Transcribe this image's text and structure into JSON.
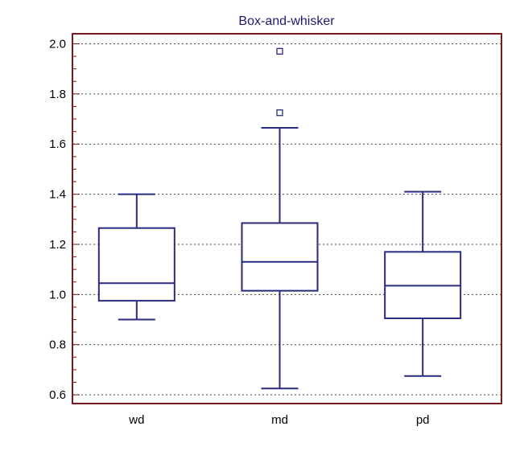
{
  "chart_data": {
    "type": "box",
    "title": "Box-and-whisker",
    "xlabel": "",
    "ylabel": "",
    "ylim": [
      0.565,
      2.04
    ],
    "y_ticks": [
      "0.6",
      "0.8",
      "1.0",
      "1.2",
      "1.4",
      "1.6",
      "1.8",
      "2.0"
    ],
    "grid": "horizontal dotted",
    "categories": [
      "wd",
      "md",
      "pd"
    ],
    "boxes": [
      {
        "category": "wd",
        "whisker_low": 0.9,
        "q1": 0.975,
        "median": 1.045,
        "q3": 1.265,
        "whisker_high": 1.4,
        "outliers": []
      },
      {
        "category": "md",
        "whisker_low": 0.625,
        "q1": 1.015,
        "median": 1.13,
        "q3": 1.285,
        "whisker_high": 1.665,
        "outliers": [
          1.725,
          1.97
        ]
      },
      {
        "category": "pd",
        "whisker_low": 0.675,
        "q1": 0.905,
        "median": 1.035,
        "q3": 1.17,
        "whisker_high": 1.41,
        "outliers": []
      }
    ],
    "colors": {
      "box": "#2a2a80",
      "frame": "#7a1a1a",
      "grid": "#444444",
      "title": "#1a1a6e"
    }
  }
}
